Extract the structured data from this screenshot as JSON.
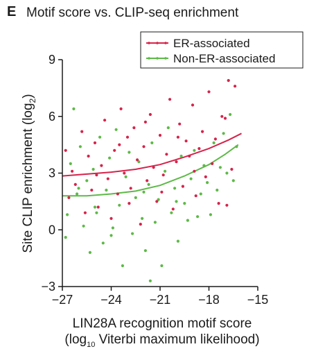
{
  "panel_label": "E",
  "chart_data": {
    "type": "scatter",
    "title": "Motif score vs. CLIP-seq enrichment",
    "ylabel_main": "Site CLIP enrichment (log",
    "ylabel_sub": "2",
    "ylabel_end": ")",
    "xlabel_line1": "LIN28A recognition motif score",
    "xlabel_line2_start": "(log",
    "xlabel_line2_sub": "10",
    "xlabel_line2_end": " Viterbi maximum likelihood)",
    "xlim": [
      -27,
      -15
    ],
    "ylim": [
      -3,
      9
    ],
    "xticks": [
      -27,
      -24,
      -21,
      -18,
      -15
    ],
    "yticks": [
      -3,
      0,
      3,
      6,
      9
    ],
    "xtick_labels": [
      "−27",
      "−24",
      "−21",
      "−18",
      "−15"
    ],
    "ytick_labels": [
      "−3",
      "0",
      "3",
      "6",
      "9"
    ],
    "legend_position": "top-right",
    "series": [
      {
        "name": "ER-associated",
        "color": "#d6234a",
        "fit": [
          [
            -27,
            2.85
          ],
          [
            -25.5,
            2.95
          ],
          [
            -24,
            3.05
          ],
          [
            -22.5,
            3.2
          ],
          [
            -21,
            3.45
          ],
          [
            -19.5,
            3.85
          ],
          [
            -18,
            4.3
          ],
          [
            -16.8,
            4.75
          ],
          [
            -16.0,
            5.1
          ]
        ],
        "points": [
          [
            -26.4,
            3.1
          ],
          [
            -26.6,
            1.7
          ],
          [
            -26.2,
            2.4
          ],
          [
            -25.8,
            5.2
          ],
          [
            -25.6,
            0.9
          ],
          [
            -25.4,
            3.9
          ],
          [
            -25.2,
            2.1
          ],
          [
            -25.0,
            4.6
          ],
          [
            -24.8,
            1.2
          ],
          [
            -24.6,
            3.4
          ],
          [
            -24.4,
            5.8
          ],
          [
            -24.2,
            2.7
          ],
          [
            -24.0,
            0.6
          ],
          [
            -23.8,
            4.2
          ],
          [
            -23.6,
            1.9
          ],
          [
            -23.4,
            6.4
          ],
          [
            -23.2,
            3.0
          ],
          [
            -23.0,
            4.9
          ],
          [
            -22.8,
            2.2
          ],
          [
            -22.6,
            5.4
          ],
          [
            -22.4,
            3.7
          ],
          [
            -22.2,
            0.3
          ],
          [
            -22.0,
            4.4
          ],
          [
            -21.8,
            2.6
          ],
          [
            -21.6,
            6.1
          ],
          [
            -21.4,
            3.3
          ],
          [
            -21.2,
            1.5
          ],
          [
            -21.0,
            5.0
          ],
          [
            -20.8,
            2.9
          ],
          [
            -20.6,
            4.0
          ],
          [
            -20.4,
            6.9
          ],
          [
            -20.2,
            1.1
          ],
          [
            -20.0,
            3.6
          ],
          [
            -19.8,
            5.6
          ],
          [
            -19.6,
            2.3
          ],
          [
            -19.4,
            4.7
          ],
          [
            -19.2,
            3.9
          ],
          [
            -19.0,
            6.6
          ],
          [
            -18.8,
            1.8
          ],
          [
            -18.6,
            4.3
          ],
          [
            -18.4,
            5.2
          ],
          [
            -18.2,
            2.8
          ],
          [
            -18.0,
            7.3
          ],
          [
            -17.8,
            3.5
          ],
          [
            -17.6,
            4.8
          ],
          [
            -17.4,
            1.4
          ],
          [
            -17.2,
            6.0
          ],
          [
            -17.0,
            5.9
          ],
          [
            -16.8,
            7.9
          ],
          [
            -16.6,
            3.2
          ],
          [
            -16.4,
            7.6
          ],
          [
            -16.9,
            1.3
          ],
          [
            -22.9,
            1.4
          ],
          [
            -24.9,
            2.9
          ],
          [
            -23.5,
            4.5
          ],
          [
            -21.9,
            5.7
          ],
          [
            -20.9,
            2.0
          ],
          [
            -19.9,
            4.9
          ],
          [
            -18.9,
            3.1
          ],
          [
            -26.8,
            4.2
          ]
        ]
      },
      {
        "name": "Non-ER-associated",
        "color": "#5db947",
        "fit": [
          [
            -27,
            1.8
          ],
          [
            -25.5,
            1.8
          ],
          [
            -24,
            1.9
          ],
          [
            -22.5,
            2.05
          ],
          [
            -21,
            2.35
          ],
          [
            -19.5,
            2.85
          ],
          [
            -18,
            3.45
          ],
          [
            -17,
            4.0
          ],
          [
            -16.2,
            4.5
          ]
        ],
        "points": [
          [
            -26.8,
            -0.4
          ],
          [
            -26.7,
            0.8
          ],
          [
            -26.5,
            3.5
          ],
          [
            -26.3,
            6.4
          ],
          [
            -26.1,
            1.9
          ],
          [
            -25.9,
            4.4
          ],
          [
            -25.7,
            0.2
          ],
          [
            -25.5,
            2.6
          ],
          [
            -25.3,
            -1.2
          ],
          [
            -25.1,
            3.2
          ],
          [
            -24.9,
            0.9
          ],
          [
            -24.7,
            4.9
          ],
          [
            -24.5,
            -0.7
          ],
          [
            -24.3,
            2.1
          ],
          [
            -24.1,
            3.8
          ],
          [
            -23.9,
            0.1
          ],
          [
            -23.7,
            5.3
          ],
          [
            -23.5,
            1.3
          ],
          [
            -23.3,
            -1.9
          ],
          [
            -23.1,
            2.8
          ],
          [
            -22.9,
            4.1
          ],
          [
            -22.7,
            -0.2
          ],
          [
            -22.5,
            1.7
          ],
          [
            -22.3,
            3.6
          ],
          [
            -22.1,
            0.6
          ],
          [
            -21.9,
            -1.1
          ],
          [
            -21.7,
            2.4
          ],
          [
            -21.5,
            4.6
          ],
          [
            -21.3,
            0.4
          ],
          [
            -21.1,
            1.6
          ],
          [
            -20.9,
            -1.9
          ],
          [
            -20.7,
            3.1
          ],
          [
            -20.5,
            5.4
          ],
          [
            -20.3,
            0.9
          ],
          [
            -20.1,
            2.2
          ],
          [
            -19.9,
            -0.6
          ],
          [
            -19.7,
            3.9
          ],
          [
            -19.5,
            1.4
          ],
          [
            -19.3,
            0.5
          ],
          [
            -19.1,
            2.7
          ],
          [
            -18.9,
            4.2
          ],
          [
            -18.7,
            0.7
          ],
          [
            -18.5,
            1.9
          ],
          [
            -18.3,
            3.4
          ],
          [
            -18.1,
            2.5
          ],
          [
            -17.9,
            0.8
          ],
          [
            -17.7,
            4.6
          ],
          [
            -17.5,
            2.1
          ],
          [
            -17.3,
            3.3
          ],
          [
            -17.1,
            5.1
          ],
          [
            -16.9,
            3.0
          ],
          [
            -16.7,
            6.1
          ],
          [
            -16.5,
            2.6
          ],
          [
            -16.3,
            4.4
          ],
          [
            -21.6,
            -2.7
          ],
          [
            -24.0,
            -0.3
          ],
          [
            -25.0,
            1.2
          ],
          [
            -22.0,
            2.0
          ],
          [
            -20.0,
            1.5
          ],
          [
            -26.0,
            2.2
          ]
        ]
      }
    ]
  }
}
